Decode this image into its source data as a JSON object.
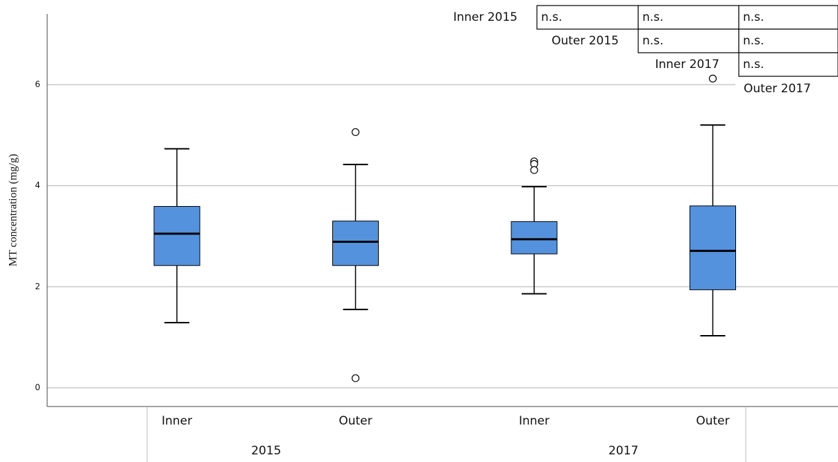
{
  "chart_data": {
    "type": "box",
    "y_label": "MT concentration (mg/g)",
    "categories": [
      "Inner",
      "Outer",
      "Inner",
      "Outer"
    ],
    "groups": [
      "2015",
      "2017"
    ],
    "color": "#5592de",
    "ylim": [
      -0.37,
      7.4
    ],
    "yticks": [
      0,
      2,
      4,
      6
    ],
    "grid": true,
    "boxes": [
      {
        "whisker_low": 1.29,
        "q1": 2.42,
        "median": 3.05,
        "q3": 3.59,
        "whisker_high": 4.73,
        "outliers": []
      },
      {
        "whisker_low": 1.55,
        "q1": 2.42,
        "median": 2.89,
        "q3": 3.3,
        "whisker_high": 4.42,
        "outliers": [
          5.06,
          0.19
        ]
      },
      {
        "whisker_low": 1.86,
        "q1": 2.65,
        "median": 2.94,
        "q3": 3.29,
        "whisker_high": 3.98,
        "outliers": [
          4.48,
          4.43,
          4.31
        ]
      },
      {
        "whisker_low": 1.03,
        "q1": 1.94,
        "median": 2.71,
        "q3": 3.6,
        "whisker_high": 5.2,
        "outliers": [
          6.12
        ]
      }
    ],
    "comparison_table": [
      {
        "label": "Inner 2015",
        "cells": [
          "n.s.",
          "n.s.",
          "n.s."
        ]
      },
      {
        "label": "Outer 2015",
        "cells": [
          "n.s.",
          "n.s."
        ]
      },
      {
        "label": "Inner 2017",
        "cells": [
          "n.s."
        ]
      },
      {
        "label": "Outer 2017"
      }
    ]
  }
}
